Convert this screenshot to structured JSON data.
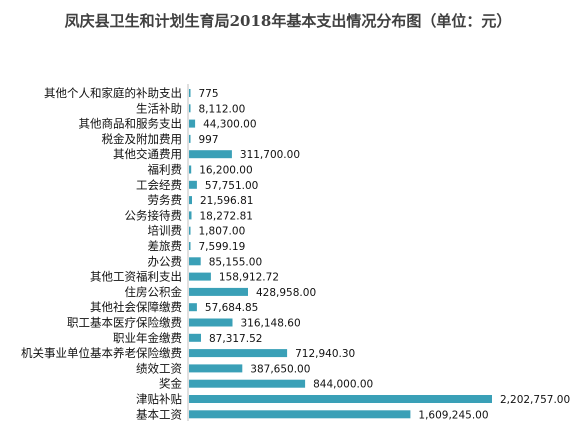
{
  "chart_data": {
    "type": "bar",
    "orientation": "horizontal",
    "title": "凤庆县卫生和计划生育局2018年基本支出情况分布图（单位：元）",
    "xlabel": "",
    "ylabel": "",
    "grid": false,
    "legend": "none",
    "bar_color": "#3aa0b7",
    "categories": [
      "其他个人和家庭的补助支出",
      "生活补助",
      "其他商品和服务支出",
      "税金及附加费用",
      "其他交通费用",
      "福利费",
      "工会经费",
      "劳务费",
      "公务接待费",
      "培训费",
      "差旅费",
      "办公费",
      "其他工资福利支出",
      "住房公积金",
      "其他社会保障缴费",
      "职工基本医疗保险缴费",
      "职业年金缴费",
      "机关事业单位基本养老保险缴费",
      "绩效工资",
      "奖金",
      "津贴补贴",
      "基本工资"
    ],
    "values": [
      775,
      8112,
      44300,
      997,
      311700,
      16200,
      57751,
      21596.81,
      18272.81,
      1807,
      7599.19,
      85155,
      158912.72,
      428958,
      57684.85,
      316148.6,
      87317.52,
      712940.3,
      387650,
      844000,
      2202757,
      1609245
    ],
    "value_labels": [
      "775",
      "8,112.00",
      "44,300.00",
      "997",
      "311,700.00",
      "16,200.00",
      "57,751.00",
      "21,596.81",
      "18,272.81",
      "1,807.00",
      "7,599.19",
      "85,155.00",
      "158,912.72",
      "428,958.00",
      "57,684.85",
      "316,148.60",
      "87,317.52",
      "712,940.30",
      "387,650.00",
      "844,000.00",
      "2,202,757.00",
      "1,609,245.00"
    ],
    "xlim": [
      0,
      2202757
    ]
  }
}
